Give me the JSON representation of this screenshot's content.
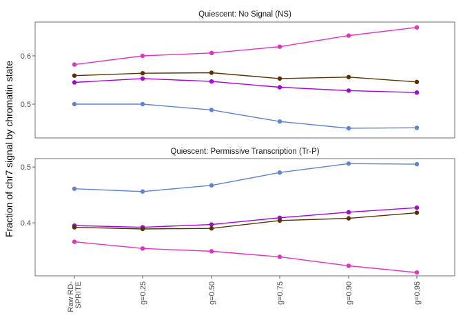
{
  "chart_data": {
    "type": "line",
    "ylabel": "Fraction of chr7 signal by chromatin state",
    "x_categories": [
      "Raw RD-SPRITE",
      "g=0.25",
      "g=0.50",
      "g=0.75",
      "g=0.90",
      "g=0.95"
    ],
    "panels": [
      {
        "title": "Quiescent: No Signal (NS)",
        "ylim": [
          0.43,
          0.67
        ],
        "yticks": [
          0.5,
          0.6
        ],
        "ytick_labels": [
          "0.5",
          "0.6"
        ],
        "series": [
          {
            "color": "#e830c0",
            "values": [
              0.582,
              0.6,
              0.606,
              0.619,
              0.642,
              0.659
            ]
          },
          {
            "color": "#5a3200",
            "values": [
              0.559,
              0.564,
              0.565,
              0.553,
              0.556,
              0.546
            ]
          },
          {
            "color": "#a800e0",
            "values": [
              0.545,
              0.553,
              0.547,
              0.535,
              0.528,
              0.524
            ]
          },
          {
            "color": "#5b84d6",
            "values": [
              0.5,
              0.5,
              0.488,
              0.464,
              0.45,
              0.451
            ]
          }
        ]
      },
      {
        "title": "Quiescent: Permissive Transcription (Tr-P)",
        "ylim": [
          0.305,
          0.515
        ],
        "yticks": [
          0.4,
          0.5
        ],
        "ytick_labels": [
          "0.4",
          "0.5"
        ],
        "series": [
          {
            "color": "#5b84d6",
            "values": [
              0.461,
              0.456,
              0.467,
              0.49,
              0.506,
              0.505
            ]
          },
          {
            "color": "#a800e0",
            "values": [
              0.395,
              0.392,
              0.397,
              0.409,
              0.419,
              0.427
            ]
          },
          {
            "color": "#5a3200",
            "values": [
              0.392,
              0.389,
              0.39,
              0.404,
              0.408,
              0.418
            ]
          },
          {
            "color": "#e830c0",
            "values": [
              0.366,
              0.354,
              0.349,
              0.339,
              0.323,
              0.311
            ]
          }
        ]
      }
    ]
  }
}
